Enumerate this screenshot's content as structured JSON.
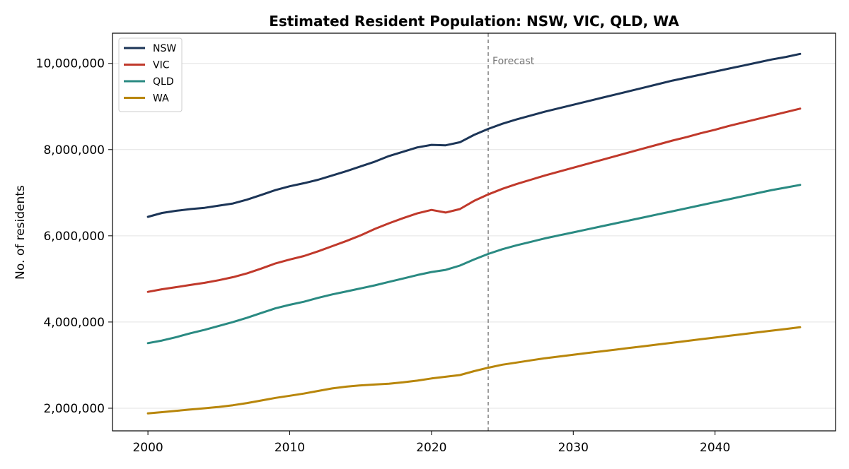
{
  "chart_data": {
    "type": "line",
    "title": "Estimated Resident Population: NSW, VIC, QLD, WA",
    "xlabel": "",
    "ylabel": "No. of residents",
    "xlim": [
      1997.5,
      2048.5
    ],
    "ylim": [
      1475000,
      10700000
    ],
    "x_ticks": [
      2000,
      2010,
      2020,
      2030,
      2040
    ],
    "x_tick_labels": [
      "2000",
      "2010",
      "2020",
      "2030",
      "2040"
    ],
    "y_ticks": [
      2000000,
      4000000,
      6000000,
      8000000,
      10000000
    ],
    "y_tick_labels": [
      "2,000,000",
      "4,000,000",
      "6,000,000",
      "8,000,000",
      "10,000,000"
    ],
    "grid": "horizontal",
    "legend_position": "top-left",
    "forecast_line": {
      "x": 2024,
      "label": "Forecast",
      "color": "#777777"
    },
    "x": [
      2000,
      2001,
      2002,
      2003,
      2004,
      2005,
      2006,
      2007,
      2008,
      2009,
      2010,
      2011,
      2012,
      2013,
      2014,
      2015,
      2016,
      2017,
      2018,
      2019,
      2020,
      2021,
      2022,
      2023,
      2024,
      2025,
      2026,
      2027,
      2028,
      2029,
      2030,
      2031,
      2032,
      2033,
      2034,
      2035,
      2036,
      2037,
      2038,
      2039,
      2040,
      2041,
      2042,
      2043,
      2044,
      2045,
      2046
    ],
    "series": [
      {
        "name": "NSW",
        "color": "#1c3557",
        "values": [
          6440000,
          6530000,
          6580000,
          6620000,
          6650000,
          6700000,
          6750000,
          6840000,
          6950000,
          7060000,
          7150000,
          7220000,
          7300000,
          7400000,
          7500000,
          7610000,
          7720000,
          7850000,
          7950000,
          8050000,
          8110000,
          8100000,
          8170000,
          8340000,
          8480000,
          8600000,
          8700000,
          8790000,
          8880000,
          8960000,
          9040000,
          9120000,
          9200000,
          9280000,
          9360000,
          9440000,
          9520000,
          9600000,
          9670000,
          9740000,
          9810000,
          9880000,
          9950000,
          10020000,
          10090000,
          10150000,
          10220000
        ]
      },
      {
        "name": "VIC",
        "color": "#c0392b",
        "values": [
          4700000,
          4760000,
          4810000,
          4860000,
          4910000,
          4970000,
          5040000,
          5130000,
          5240000,
          5360000,
          5450000,
          5530000,
          5640000,
          5760000,
          5880000,
          6010000,
          6160000,
          6290000,
          6410000,
          6520000,
          6600000,
          6540000,
          6620000,
          6810000,
          6960000,
          7090000,
          7200000,
          7300000,
          7400000,
          7490000,
          7580000,
          7670000,
          7760000,
          7850000,
          7940000,
          8030000,
          8120000,
          8210000,
          8290000,
          8380000,
          8460000,
          8550000,
          8630000,
          8710000,
          8790000,
          8870000,
          8950000
        ]
      },
      {
        "name": "QLD",
        "color": "#2a8a82",
        "values": [
          3510000,
          3570000,
          3650000,
          3740000,
          3820000,
          3910000,
          4000000,
          4100000,
          4210000,
          4320000,
          4400000,
          4470000,
          4560000,
          4640000,
          4710000,
          4780000,
          4850000,
          4930000,
          5010000,
          5090000,
          5160000,
          5210000,
          5310000,
          5450000,
          5580000,
          5690000,
          5780000,
          5860000,
          5940000,
          6010000,
          6080000,
          6150000,
          6220000,
          6290000,
          6360000,
          6430000,
          6500000,
          6570000,
          6640000,
          6710000,
          6780000,
          6850000,
          6920000,
          6990000,
          7060000,
          7120000,
          7180000
        ]
      },
      {
        "name": "WA",
        "color": "#b8860b",
        "values": [
          1880000,
          1910000,
          1940000,
          1970000,
          2000000,
          2030000,
          2070000,
          2120000,
          2180000,
          2240000,
          2290000,
          2340000,
          2400000,
          2460000,
          2500000,
          2530000,
          2550000,
          2570000,
          2600000,
          2640000,
          2690000,
          2730000,
          2770000,
          2860000,
          2940000,
          3010000,
          3060000,
          3110000,
          3160000,
          3200000,
          3240000,
          3280000,
          3320000,
          3360000,
          3400000,
          3440000,
          3480000,
          3520000,
          3560000,
          3600000,
          3640000,
          3680000,
          3720000,
          3760000,
          3800000,
          3840000,
          3880000
        ]
      }
    ]
  }
}
